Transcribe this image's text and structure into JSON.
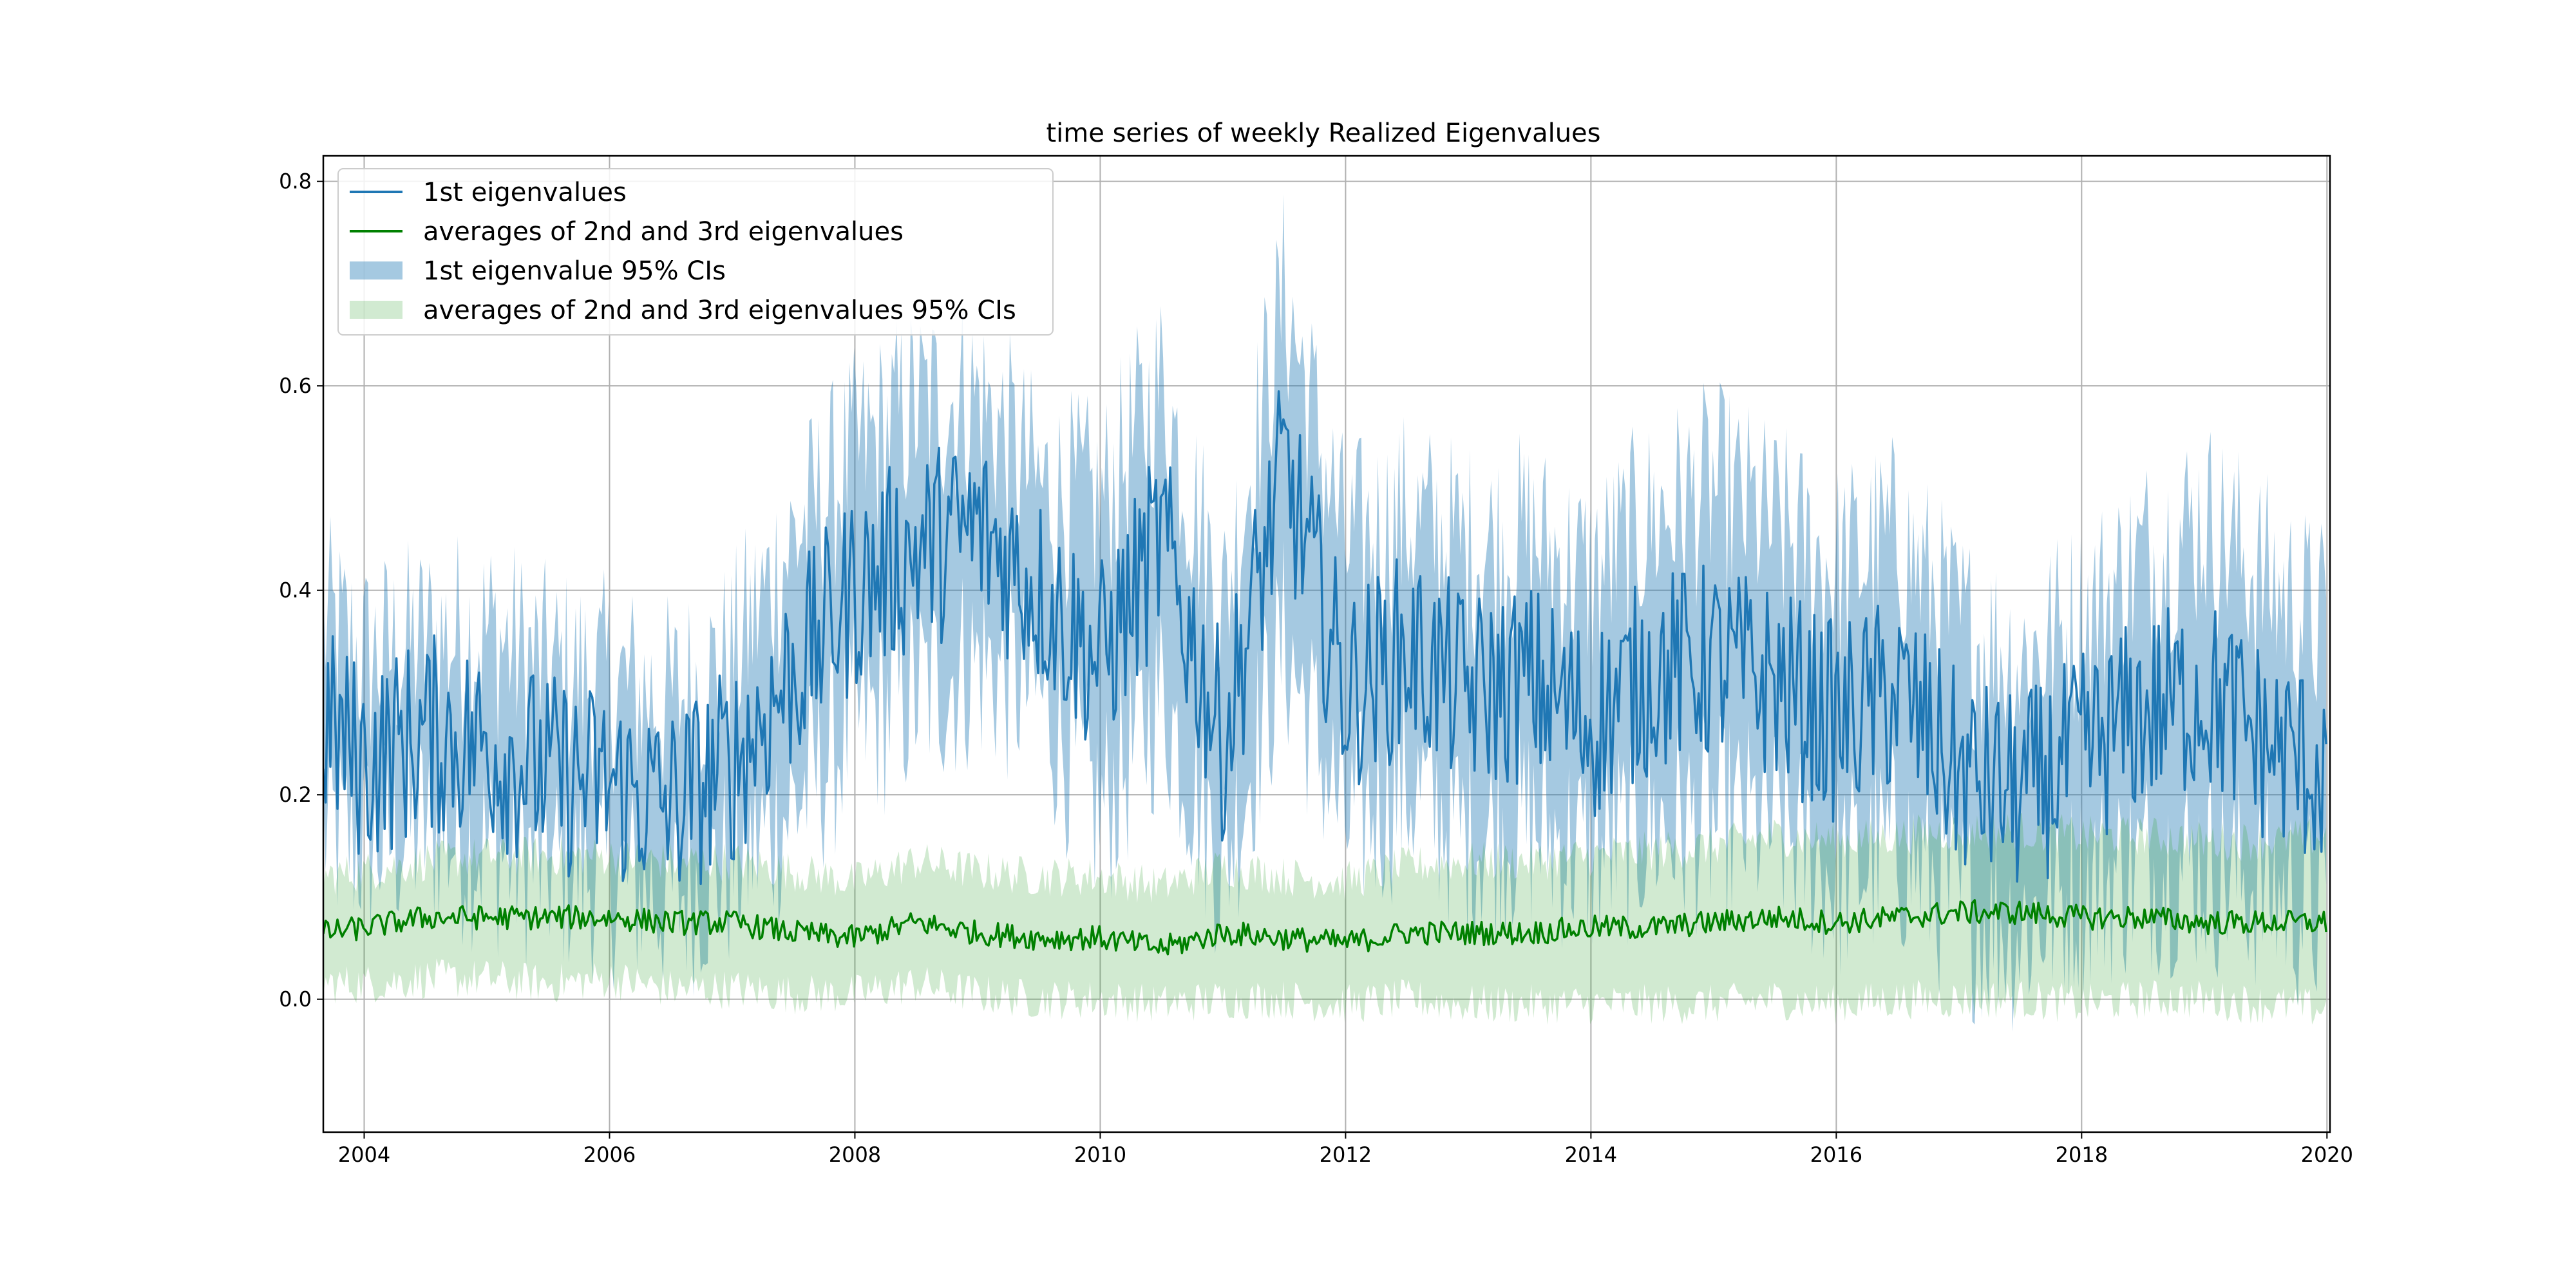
{
  "chart_data": {
    "type": "line",
    "title": "time series of weekly Realized Eigenvalues",
    "xlabel": "",
    "ylabel": "",
    "xlim": [
      "2003-09-01",
      "2020-01-10"
    ],
    "ylim": [
      -0.13,
      0.825
    ],
    "x_ticks": [
      "2004",
      "2006",
      "2008",
      "2010",
      "2012",
      "2014",
      "2016",
      "2018",
      "2020"
    ],
    "y_ticks": [
      "0.0",
      "0.2",
      "0.4",
      "0.6",
      "0.8"
    ],
    "grid": true,
    "legend_position": "top-left",
    "colors": {
      "first_line": "#1f77b4",
      "first_band": "#1f77b4",
      "avg_line": "#008000",
      "avg_band": "#2ca02c"
    },
    "series": [
      {
        "name": "1st eigenvalues",
        "kind": "line",
        "color": "#1f77b4",
        "x": [
          "2003-09",
          "2004-01",
          "2004-07",
          "2005-01",
          "2005-07",
          "2006-01",
          "2006-07",
          "2007-01",
          "2007-07",
          "2008-01",
          "2008-07",
          "2009-01",
          "2009-07",
          "2010-01",
          "2010-07",
          "2011-01",
          "2011-07",
          "2012-01",
          "2012-07",
          "2013-01",
          "2013-07",
          "2014-01",
          "2014-07",
          "2015-01",
          "2015-07",
          "2016-01",
          "2016-07",
          "2017-01",
          "2017-07",
          "2018-01",
          "2018-07",
          "2019-01",
          "2019-07",
          "2020-01"
        ],
        "values": [
          0.27,
          0.23,
          0.26,
          0.25,
          0.22,
          0.21,
          0.19,
          0.23,
          0.32,
          0.4,
          0.44,
          0.46,
          0.4,
          0.33,
          0.45,
          0.25,
          0.52,
          0.3,
          0.34,
          0.3,
          0.31,
          0.27,
          0.32,
          0.33,
          0.31,
          0.27,
          0.3,
          0.22,
          0.2,
          0.24,
          0.28,
          0.3,
          0.25,
          0.22
        ]
      },
      {
        "name": "averages of 2nd and 3rd eigenvalues",
        "kind": "line",
        "color": "#008000",
        "x": [
          "2003-09",
          "2004-01",
          "2004-07",
          "2005-01",
          "2005-07",
          "2006-01",
          "2006-07",
          "2007-01",
          "2007-07",
          "2008-01",
          "2008-07",
          "2009-01",
          "2009-07",
          "2010-01",
          "2010-07",
          "2011-01",
          "2011-07",
          "2012-01",
          "2012-07",
          "2013-01",
          "2013-07",
          "2014-01",
          "2014-07",
          "2015-01",
          "2015-07",
          "2016-01",
          "2016-07",
          "2017-01",
          "2017-07",
          "2018-01",
          "2018-07",
          "2019-01",
          "2019-07",
          "2020-01"
        ],
        "values": [
          0.065,
          0.07,
          0.08,
          0.08,
          0.08,
          0.08,
          0.075,
          0.075,
          0.065,
          0.06,
          0.075,
          0.065,
          0.06,
          0.06,
          0.05,
          0.065,
          0.06,
          0.055,
          0.065,
          0.065,
          0.065,
          0.07,
          0.07,
          0.075,
          0.08,
          0.075,
          0.08,
          0.085,
          0.085,
          0.08,
          0.08,
          0.075,
          0.075,
          0.075
        ]
      },
      {
        "name": "1st eigenvalue 95% CIs",
        "kind": "band",
        "color": "#1f77b4",
        "x": [
          "2003-09",
          "2004-01",
          "2004-07",
          "2005-01",
          "2005-07",
          "2006-01",
          "2006-07",
          "2007-01",
          "2007-07",
          "2008-01",
          "2008-07",
          "2009-01",
          "2009-07",
          "2010-01",
          "2010-07",
          "2011-01",
          "2011-07",
          "2012-01",
          "2012-07",
          "2013-01",
          "2013-07",
          "2014-01",
          "2014-07",
          "2015-01",
          "2015-07",
          "2016-01",
          "2016-07",
          "2017-01",
          "2017-07",
          "2018-01",
          "2018-07",
          "2019-01",
          "2019-07",
          "2020-01"
        ],
        "lower": [
          0.17,
          0.15,
          0.17,
          0.15,
          0.13,
          0.12,
          0.1,
          0.13,
          0.19,
          0.27,
          0.3,
          0.33,
          0.3,
          0.18,
          0.3,
          0.13,
          0.35,
          0.17,
          0.21,
          0.16,
          0.17,
          0.14,
          0.17,
          0.17,
          0.17,
          0.12,
          0.15,
          0.09,
          0.07,
          0.11,
          0.13,
          0.13,
          0.11,
          0.08
        ],
        "upper": [
          0.37,
          0.33,
          0.35,
          0.36,
          0.32,
          0.31,
          0.29,
          0.33,
          0.45,
          0.53,
          0.58,
          0.59,
          0.5,
          0.48,
          0.6,
          0.38,
          0.69,
          0.44,
          0.47,
          0.44,
          0.45,
          0.41,
          0.47,
          0.5,
          0.46,
          0.42,
          0.45,
          0.36,
          0.33,
          0.37,
          0.43,
          0.47,
          0.41,
          0.36
        ]
      },
      {
        "name": "averages of 2nd and 3rd eigenvalues 95% CIs",
        "kind": "band",
        "color": "#2ca02c",
        "x": [
          "2003-09",
          "2004-01",
          "2004-07",
          "2005-01",
          "2005-07",
          "2006-01",
          "2006-07",
          "2007-01",
          "2007-07",
          "2008-01",
          "2008-07",
          "2009-01",
          "2009-07",
          "2010-01",
          "2010-07",
          "2011-01",
          "2011-07",
          "2012-01",
          "2012-07",
          "2013-01",
          "2013-07",
          "2014-01",
          "2014-07",
          "2015-01",
          "2015-07",
          "2016-01",
          "2016-07",
          "2017-01",
          "2017-07",
          "2018-01",
          "2018-07",
          "2019-01",
          "2019-07",
          "2020-01"
        ],
        "lower": [
          0.015,
          0.015,
          0.02,
          0.02,
          0.015,
          0.02,
          0.01,
          0.01,
          0.005,
          0.005,
          0.015,
          0.005,
          0.0,
          0.0,
          -0.005,
          0.0,
          0.0,
          -0.005,
          0.0,
          -0.005,
          -0.005,
          -0.005,
          -0.005,
          -0.005,
          0.0,
          -0.005,
          0.0,
          0.0,
          0.0,
          -0.005,
          0.0,
          0.0,
          -0.005,
          -0.01
        ],
        "upper": [
          0.12,
          0.125,
          0.135,
          0.14,
          0.14,
          0.14,
          0.135,
          0.135,
          0.125,
          0.115,
          0.135,
          0.125,
          0.12,
          0.12,
          0.11,
          0.13,
          0.12,
          0.115,
          0.13,
          0.135,
          0.135,
          0.14,
          0.145,
          0.15,
          0.16,
          0.155,
          0.16,
          0.165,
          0.165,
          0.16,
          0.16,
          0.155,
          0.155,
          0.16
        ]
      }
    ]
  }
}
